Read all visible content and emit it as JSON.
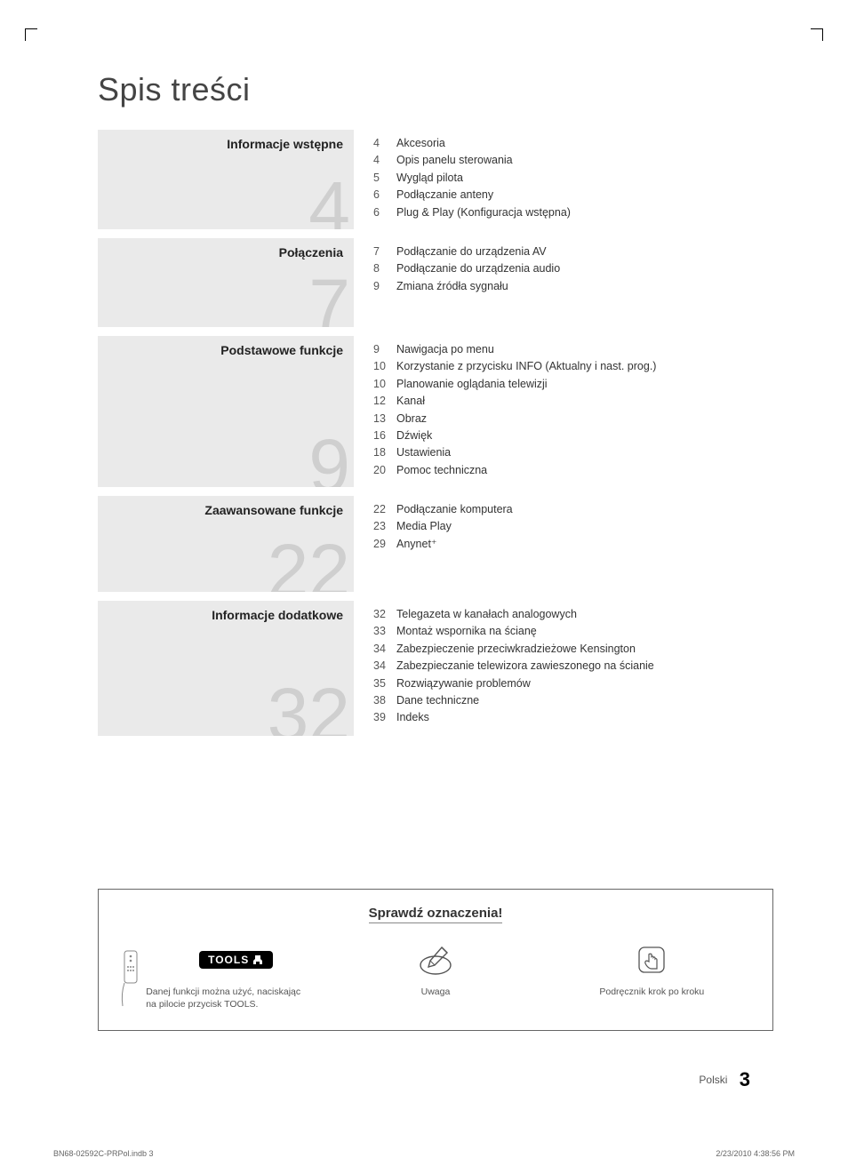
{
  "page": {
    "title": "Spis treści",
    "language_label": "Polski",
    "page_number": "3",
    "footer_left": "BN68-02592C-PRPol.indb   3",
    "footer_right": "2/23/2010   4:38:56 PM"
  },
  "colors": {
    "section_bg": "#eaeaea",
    "bignum": "#cfcfcf",
    "text": "#333333",
    "muted": "#555555",
    "border": "#666666"
  },
  "sections": [
    {
      "heading": "Informacje wstępne",
      "big_number": "4",
      "min_height": 112,
      "items": [
        {
          "page": "4",
          "text": "Akcesoria"
        },
        {
          "page": "4",
          "text": "Opis panelu sterowania"
        },
        {
          "page": "5",
          "text": "Wygląd pilota"
        },
        {
          "page": "6",
          "text": "Podłączanie anteny"
        },
        {
          "page": "6",
          "text": "Plug & Play (Konfiguracja wstępna)"
        }
      ]
    },
    {
      "heading": "Połączenia",
      "big_number": "7",
      "min_height": 100,
      "items": [
        {
          "page": "7",
          "text": "Podłączanie do urządzenia AV"
        },
        {
          "page": "8",
          "text": "Podłączanie do urządzenia audio"
        },
        {
          "page": "9",
          "text": "Zmiana źródła sygnału"
        }
      ]
    },
    {
      "heading": "Podstawowe funkcje",
      "big_number": "9",
      "min_height": 170,
      "items": [
        {
          "page": "9",
          "text": "Nawigacja po menu"
        },
        {
          "page": "10",
          "text": "Korzystanie z przycisku INFO (Aktualny i nast. prog.)"
        },
        {
          "page": "10",
          "text": "Planowanie oglądania telewizji"
        },
        {
          "page": "12",
          "text": "Kanał"
        },
        {
          "page": "13",
          "text": "Obraz"
        },
        {
          "page": "16",
          "text": "Dźwięk"
        },
        {
          "page": "18",
          "text": "Ustawienia"
        },
        {
          "page": "20",
          "text": "Pomoc techniczna"
        }
      ]
    },
    {
      "heading": "Zaawansowane funkcje",
      "big_number": "22",
      "min_height": 108,
      "items": [
        {
          "page": "22",
          "text": "Podłączanie komputera"
        },
        {
          "page": "23",
          "text": "Media Play"
        },
        {
          "page": "29",
          "text": "Anynet⁺"
        }
      ]
    },
    {
      "heading": "Informacje dodatkowe",
      "big_number": "32",
      "min_height": 152,
      "items": [
        {
          "page": "32",
          "text": "Telegazeta w kanałach analogowych"
        },
        {
          "page": "33",
          "text": "Montaż wspornika na ścianę"
        },
        {
          "page": "34",
          "text": "Zabezpieczenie przeciwkradzieżowe Kensington"
        },
        {
          "page": "34",
          "text": "Zabezpieczanie telewizora zawieszonego na ścianie"
        },
        {
          "page": "35",
          "text": "Rozwiązywanie problemów"
        },
        {
          "page": "38",
          "text": "Dane techniczne"
        },
        {
          "page": "39",
          "text": "Indeks"
        }
      ]
    }
  ],
  "symbols": {
    "title": "Sprawdź oznaczenia!",
    "tools_badge": "TOOLS",
    "tools_caption_line1": "Danej funkcji można użyć, naciskając",
    "tools_caption_line2": "na pilocie przycisk TOOLS.",
    "note_caption": "Uwaga",
    "guide_caption": "Podręcznik krok po kroku"
  }
}
